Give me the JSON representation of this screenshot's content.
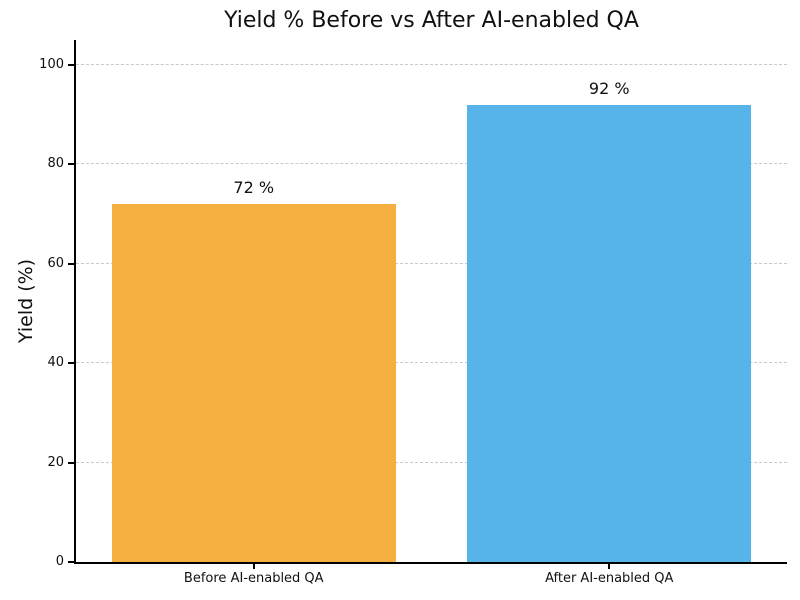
{
  "chart_data": {
    "type": "bar",
    "title": "Yield % Before vs After AI-enabled QA",
    "xlabel": "",
    "ylabel": "Yield (%)",
    "categories": [
      "Before AI-enabled QA",
      "After AI-enabled QA"
    ],
    "values": [
      72,
      92
    ],
    "value_labels": [
      "72 %",
      "92 %"
    ],
    "colors": [
      "#F5B041",
      "#56B4E9"
    ],
    "yticks": [
      0,
      20,
      40,
      60,
      80,
      100
    ],
    "ylim": [
      0,
      105
    ],
    "grid": "horizontal-dashed",
    "grid_color": "#c9c9c9",
    "axis_color": "#000000",
    "background_color": "#ffffff",
    "legend": "none"
  }
}
